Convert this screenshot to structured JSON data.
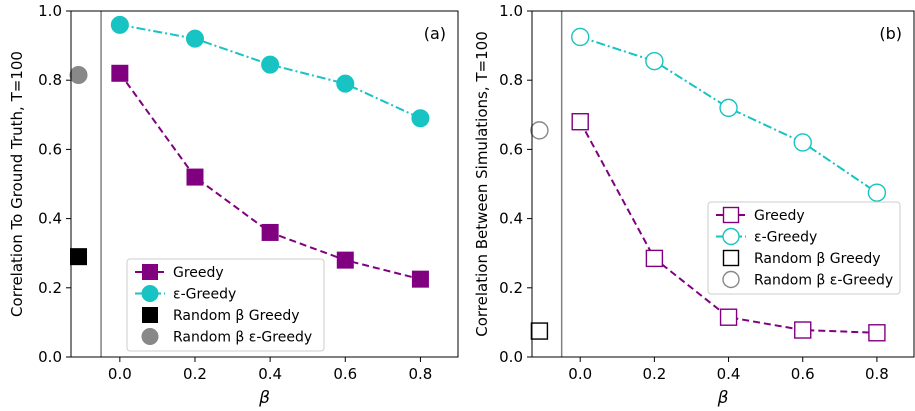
{
  "chart_data": [
    {
      "type": "line",
      "panel_label": "(a)",
      "ylabel": "Correlation To Ground Truth, T=100",
      "xlabel": "β",
      "xlim": [
        -0.13,
        0.9
      ],
      "ylim": [
        0.0,
        1.0
      ],
      "x_ticks": [
        0.0,
        0.2,
        0.4,
        0.6,
        0.8
      ],
      "x_tick_labels": [
        "0.0",
        "0.2",
        "0.4",
        "0.6",
        "0.8"
      ],
      "y_ticks": [
        0.0,
        0.2,
        0.4,
        0.6,
        0.8,
        1.0
      ],
      "y_tick_labels": [
        "0.0",
        "0.2",
        "0.4",
        "0.6",
        "0.8",
        "1.0"
      ],
      "vertical_line_x": -0.05,
      "legend_position": "lower-center",
      "series": [
        {
          "name": "Greedy",
          "marker": "square",
          "filled": true,
          "linestyle": "dashed",
          "color": "#800080",
          "x": [
            0.0,
            0.2,
            0.4,
            0.6,
            0.8
          ],
          "y": [
            0.82,
            0.52,
            0.36,
            0.28,
            0.225
          ]
        },
        {
          "name": "ε-Greedy",
          "marker": "circle",
          "filled": true,
          "linestyle": "dashdot",
          "color": "#17c3c3",
          "x": [
            0.0,
            0.2,
            0.4,
            0.6,
            0.8
          ],
          "y": [
            0.96,
            0.92,
            0.845,
            0.79,
            0.69
          ]
        },
        {
          "name": "Random β Greedy",
          "marker": "square",
          "filled": true,
          "linestyle": "none",
          "color": "#000000",
          "x": [
            -0.11
          ],
          "y": [
            0.29
          ]
        },
        {
          "name": "Random β ε-Greedy",
          "marker": "circle",
          "filled": true,
          "linestyle": "none",
          "color": "#888888",
          "x": [
            -0.11
          ],
          "y": [
            0.815
          ]
        }
      ]
    },
    {
      "type": "line",
      "panel_label": "(b)",
      "ylabel": "Correlation Between Simulations, T=100",
      "xlabel": "β",
      "xlim": [
        -0.13,
        0.9
      ],
      "ylim": [
        0.0,
        1.0
      ],
      "x_ticks": [
        0.0,
        0.2,
        0.4,
        0.6,
        0.8
      ],
      "x_tick_labels": [
        "0.0",
        "0.2",
        "0.4",
        "0.6",
        "0.8"
      ],
      "y_ticks": [
        0.0,
        0.2,
        0.4,
        0.6,
        0.8,
        1.0
      ],
      "y_tick_labels": [
        "0.0",
        "0.2",
        "0.4",
        "0.6",
        "0.8",
        "1.0"
      ],
      "vertical_line_x": -0.05,
      "legend_position": "center-right",
      "series": [
        {
          "name": "Greedy",
          "marker": "square",
          "filled": false,
          "linestyle": "dashed",
          "color": "#800080",
          "x": [
            0.0,
            0.2,
            0.4,
            0.6,
            0.8
          ],
          "y": [
            0.68,
            0.285,
            0.115,
            0.078,
            0.07
          ]
        },
        {
          "name": "ε-Greedy",
          "marker": "circle",
          "filled": false,
          "linestyle": "dashdot",
          "color": "#17c3c3",
          "x": [
            0.0,
            0.2,
            0.4,
            0.6,
            0.8
          ],
          "y": [
            0.925,
            0.855,
            0.72,
            0.62,
            0.475
          ]
        },
        {
          "name": "Random β Greedy",
          "marker": "square",
          "filled": false,
          "linestyle": "none",
          "color": "#000000",
          "x": [
            -0.11
          ],
          "y": [
            0.075
          ]
        },
        {
          "name": "Random β ε-Greedy",
          "marker": "circle",
          "filled": false,
          "linestyle": "none",
          "color": "#888888",
          "x": [
            -0.11
          ],
          "y": [
            0.655
          ]
        }
      ]
    }
  ]
}
